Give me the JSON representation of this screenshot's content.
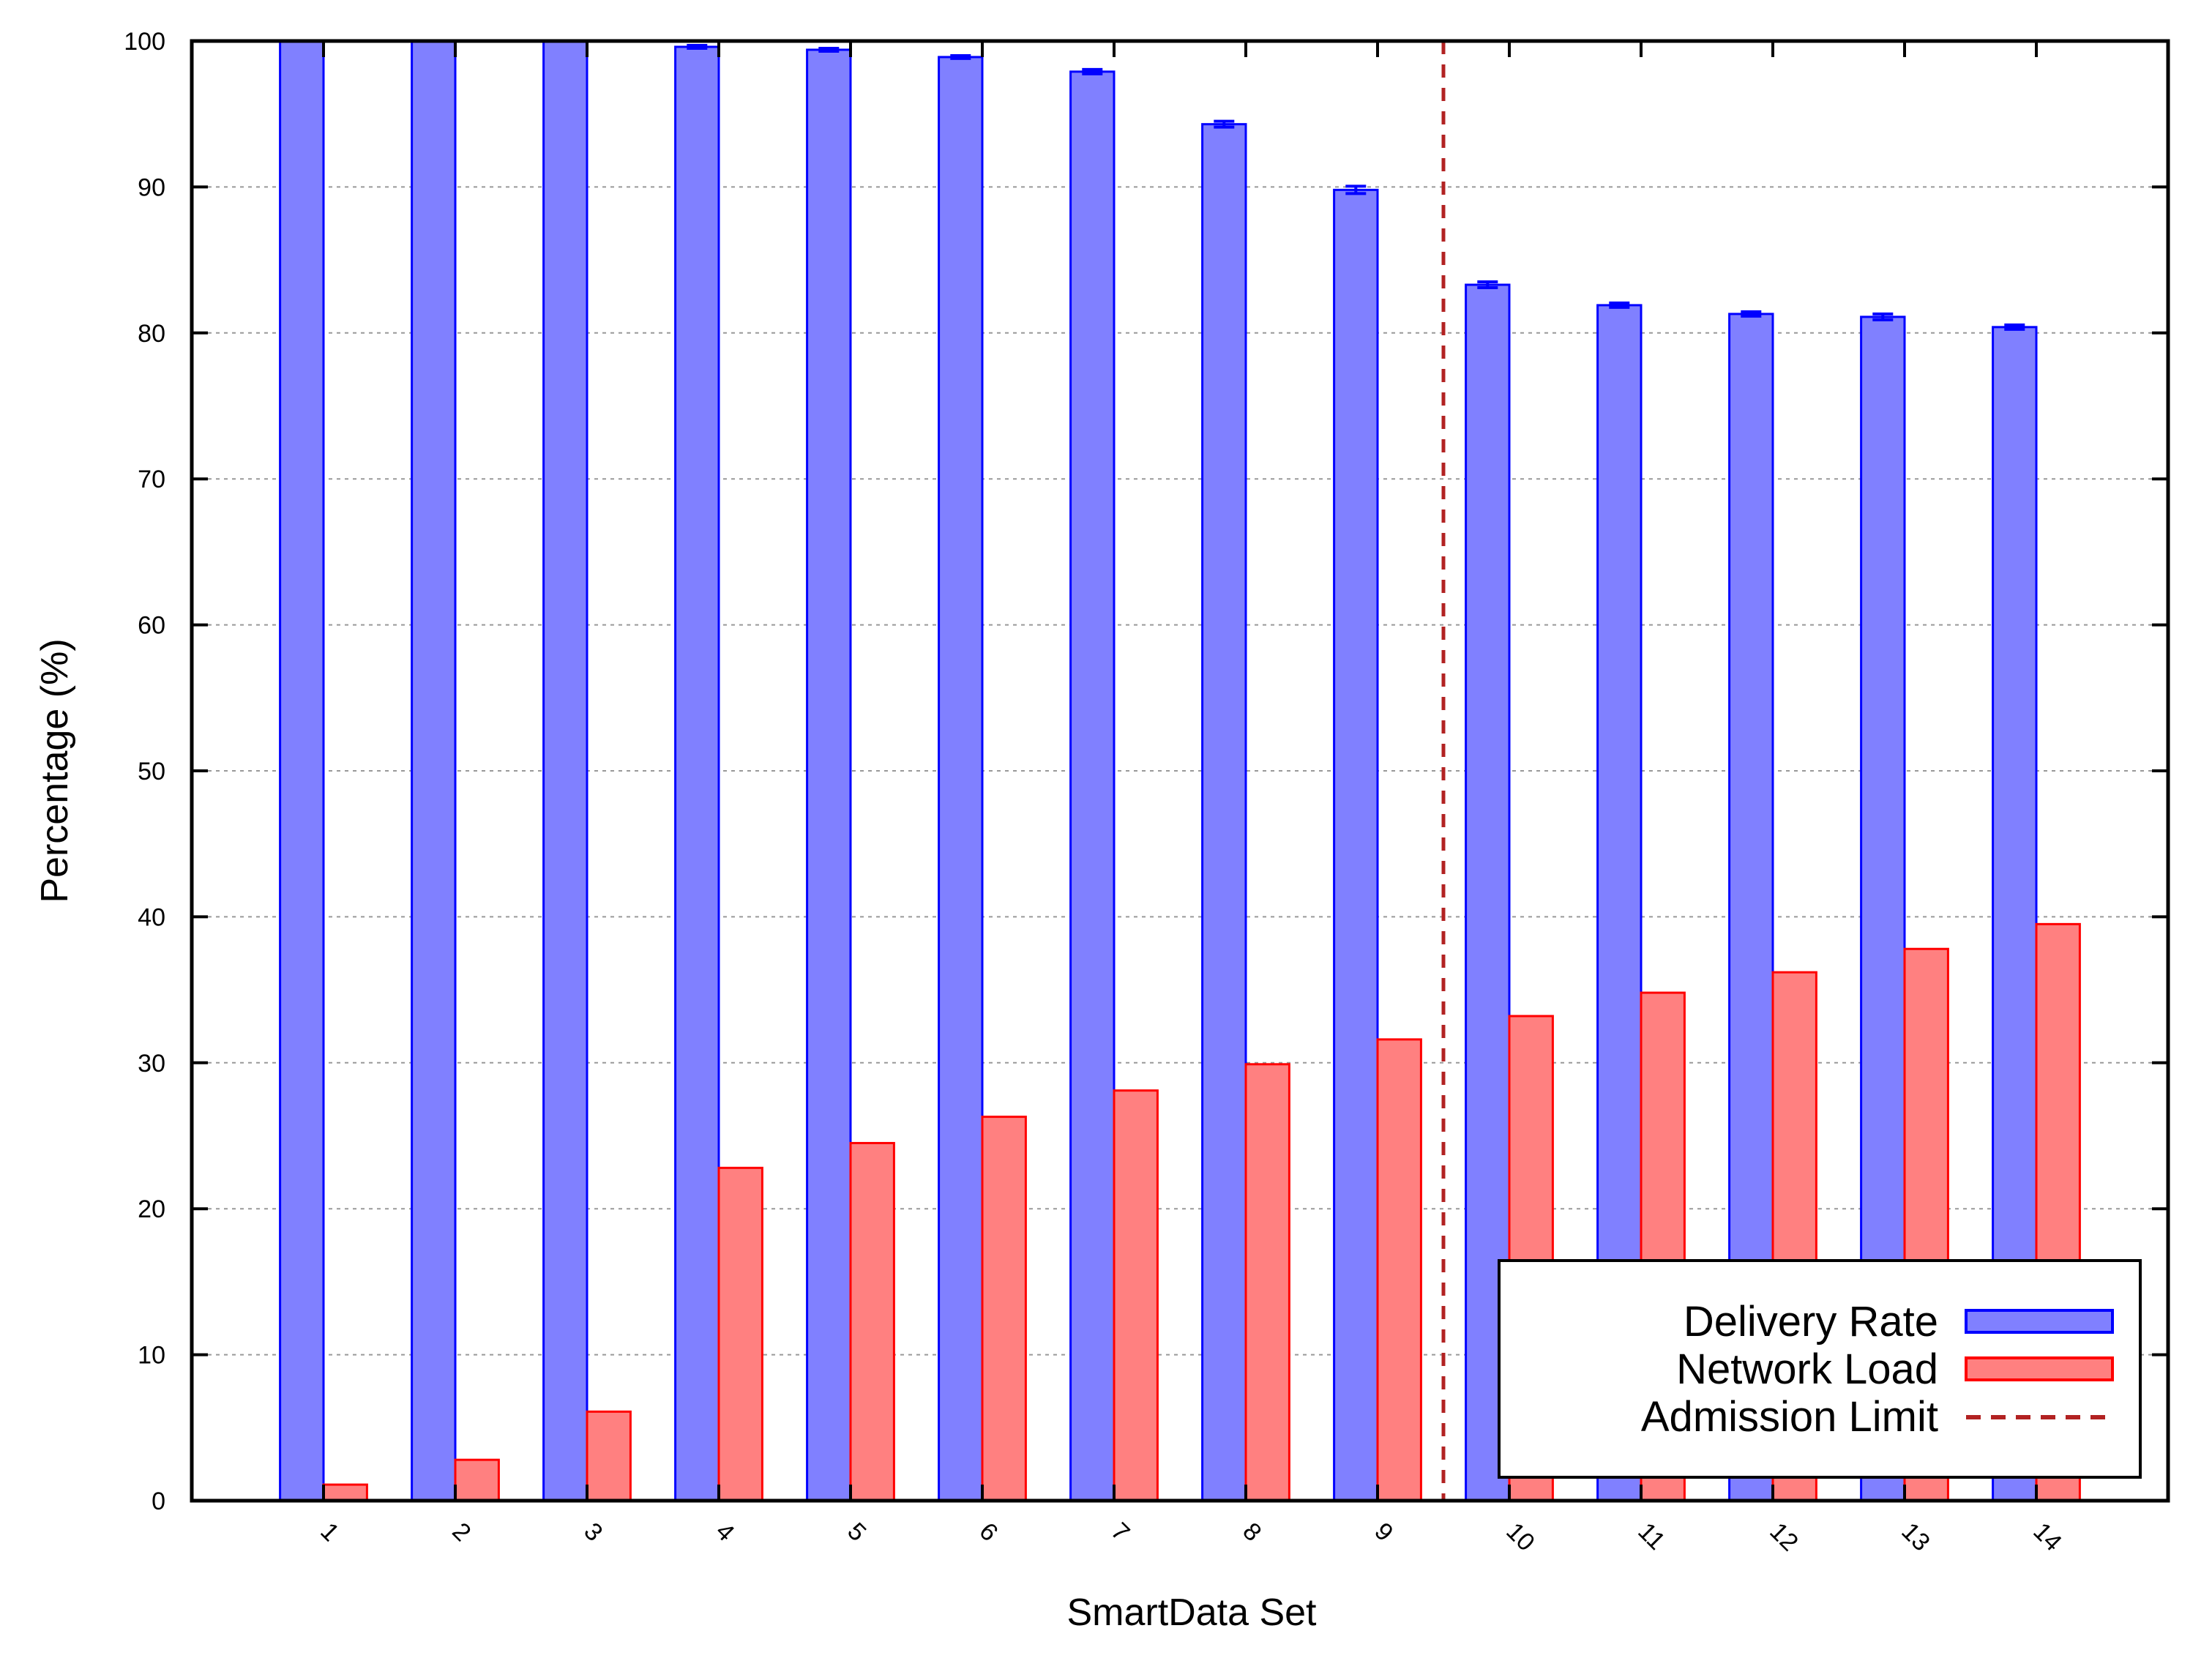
{
  "chart_data": {
    "type": "bar",
    "title": "",
    "xlabel": "SmartData Set",
    "ylabel": "Percentage (%)",
    "ylim": [
      0,
      100
    ],
    "yticks": [
      "0",
      "10",
      "20",
      "30",
      "40",
      "50",
      "60",
      "70",
      "80",
      "90",
      "100"
    ],
    "categories": [
      "1",
      "2",
      "3",
      "4",
      "5",
      "6",
      "7",
      "8",
      "9",
      "10",
      "11",
      "12",
      "13",
      "14"
    ],
    "series": [
      {
        "name": "Delivery Rate",
        "color": "#8080ff",
        "edge_color": "#0000ff",
        "values": [
          100,
          100,
          100,
          99.6,
          99.4,
          98.9,
          97.9,
          94.3,
          89.8,
          83.3,
          81.9,
          81.3,
          81.1,
          80.4
        ],
        "error": [
          0.1,
          0.1,
          0.1,
          0.1,
          0.1,
          0.1,
          0.15,
          0.2,
          0.25,
          0.2,
          0.15,
          0.15,
          0.2,
          0.15
        ]
      },
      {
        "name": "Network Load",
        "color": "#ff8080",
        "edge_color": "#ff0000",
        "values": [
          1.1,
          2.8,
          6.1,
          22.8,
          24.5,
          26.3,
          28.1,
          29.9,
          31.6,
          33.2,
          34.8,
          36.2,
          37.8,
          39.5
        ]
      }
    ],
    "reference_lines": [
      {
        "name": "Admission Limit",
        "x_between": [
          "9",
          "10"
        ],
        "color": "#b22222",
        "style": "dashed"
      }
    ],
    "legend_position": "bottom-right",
    "grid": "horizontal dotted",
    "xtick_rotation": "-45deg"
  }
}
